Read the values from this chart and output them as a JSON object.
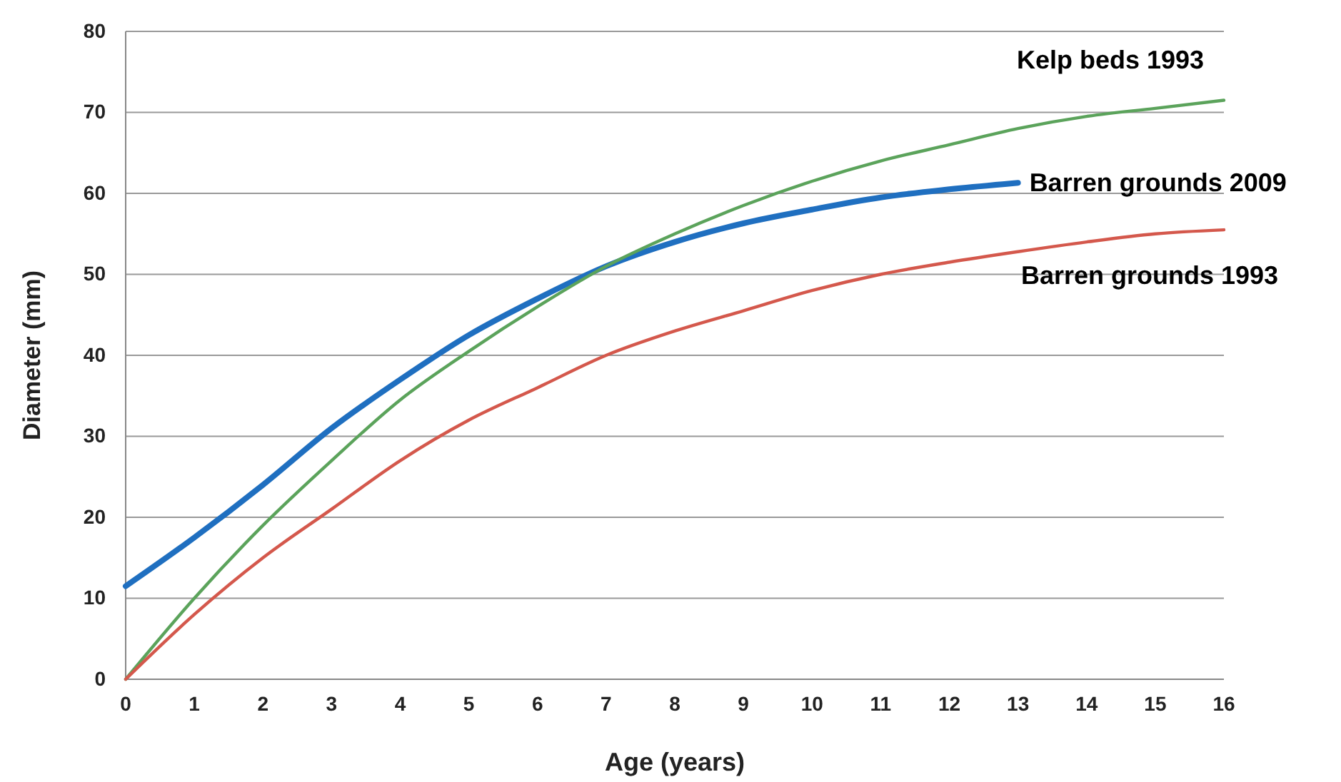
{
  "chart_data": {
    "type": "line",
    "xlabel": "Age (years)",
    "ylabel": "Diameter (mm)",
    "xlim": [
      0,
      16
    ],
    "xticks": [
      0,
      1,
      2,
      3,
      4,
      5,
      6,
      7,
      8,
      9,
      10,
      11,
      12,
      13,
      14,
      15,
      16
    ],
    "ylim": [
      0,
      80
    ],
    "yticks": [
      0,
      10,
      20,
      30,
      40,
      50,
      60,
      70,
      80
    ],
    "grid": "y",
    "marker": "none",
    "line_style": "solid",
    "series": [
      {
        "name": "Kelp beds 1993",
        "color": "#5ba35b",
        "x": [
          0,
          1,
          2,
          3,
          4,
          5,
          6,
          7,
          8,
          9,
          10,
          11,
          12,
          13,
          14,
          15,
          16
        ],
        "values": [
          0,
          10,
          19,
          27,
          34.5,
          40.5,
          46,
          51,
          55,
          58.5,
          61.5,
          64,
          66,
          68,
          69.5,
          70.5,
          71.5
        ]
      },
      {
        "name": "Barren grounds 2009",
        "color": "#1f6fc0",
        "x": [
          0,
          1,
          2,
          3,
          4,
          5,
          6,
          7,
          8,
          9,
          10,
          11,
          12,
          13
        ],
        "values": [
          11.5,
          17.5,
          24,
          31,
          37,
          42.5,
          47,
          51,
          54,
          56.3,
          58,
          59.5,
          60.5,
          61.3
        ]
      },
      {
        "name": "Barren grounds 1993",
        "color": "#d4584c",
        "x": [
          0,
          1,
          2,
          3,
          4,
          5,
          6,
          7,
          8,
          9,
          10,
          11,
          12,
          13,
          14,
          15,
          16
        ],
        "values": [
          0,
          8,
          15,
          21,
          27,
          32,
          36,
          40,
          43,
          45.5,
          48,
          50,
          51.5,
          52.8,
          54,
          55,
          55.5
        ]
      }
    ]
  }
}
